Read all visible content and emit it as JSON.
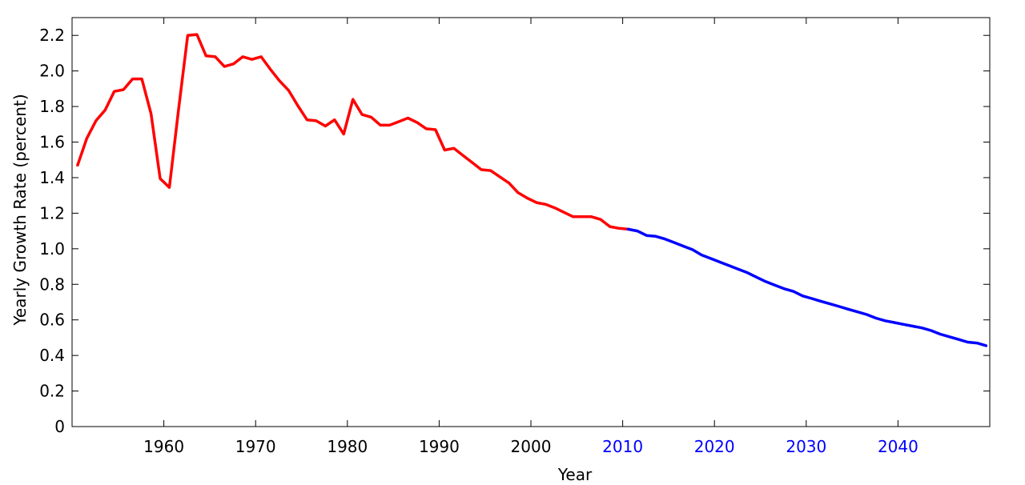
{
  "chart_data": {
    "type": "line",
    "xlabel": "Year",
    "ylabel": "Yearly Growth Rate (percent)",
    "xlim": [
      1950,
      2050
    ],
    "ylim": [
      0,
      2.3
    ],
    "grid": false,
    "x_ticks": [
      {
        "value": 1960,
        "label": "1960",
        "color": "#000000"
      },
      {
        "value": 1970,
        "label": "1970",
        "color": "#000000"
      },
      {
        "value": 1980,
        "label": "1980",
        "color": "#000000"
      },
      {
        "value": 1990,
        "label": "1990",
        "color": "#000000"
      },
      {
        "value": 2000,
        "label": "2000",
        "color": "#000000"
      },
      {
        "value": 2010,
        "label": "2010",
        "color": "#0000ff"
      },
      {
        "value": 2020,
        "label": "2020",
        "color": "#0000ff"
      },
      {
        "value": 2030,
        "label": "2030",
        "color": "#0000ff"
      },
      {
        "value": 2040,
        "label": "2040",
        "color": "#0000ff"
      }
    ],
    "y_ticks": [
      {
        "value": 0,
        "label": "0"
      },
      {
        "value": 0.2,
        "label": "0.2"
      },
      {
        "value": 0.4,
        "label": "0.4"
      },
      {
        "value": 0.6,
        "label": "0.6"
      },
      {
        "value": 0.8,
        "label": "0.8"
      },
      {
        "value": 1.0,
        "label": "1.0"
      },
      {
        "value": 1.2,
        "label": "1.2"
      },
      {
        "value": 1.4,
        "label": "1.4"
      },
      {
        "value": 1.6,
        "label": "1.6"
      },
      {
        "value": 1.8,
        "label": "1.8"
      },
      {
        "value": 2.0,
        "label": "2.0"
      },
      {
        "value": 2.2,
        "label": "2.2"
      }
    ],
    "series": [
      {
        "color": "#ff0000",
        "points": [
          [
            1950.6,
            1.47
          ],
          [
            1951.6,
            1.62
          ],
          [
            1952.6,
            1.72
          ],
          [
            1953.6,
            1.78
          ],
          [
            1954.6,
            1.885
          ],
          [
            1955.6,
            1.895
          ],
          [
            1956.6,
            1.955
          ],
          [
            1957.6,
            1.955
          ],
          [
            1958.6,
            1.76
          ],
          [
            1959.6,
            1.395
          ],
          [
            1960.6,
            1.345
          ],
          [
            1961.6,
            1.78
          ],
          [
            1962.6,
            2.2
          ],
          [
            1963.6,
            2.205
          ],
          [
            1964.6,
            2.085
          ],
          [
            1965.6,
            2.08
          ],
          [
            1966.6,
            2.025
          ],
          [
            1967.6,
            2.04
          ],
          [
            1968.6,
            2.08
          ],
          [
            1969.6,
            2.065
          ],
          [
            1970.6,
            2.08
          ],
          [
            1971.6,
            2.01
          ],
          [
            1972.6,
            1.945
          ],
          [
            1973.6,
            1.89
          ],
          [
            1974.6,
            1.805
          ],
          [
            1975.6,
            1.725
          ],
          [
            1976.6,
            1.72
          ],
          [
            1977.6,
            1.69
          ],
          [
            1978.6,
            1.725
          ],
          [
            1979.6,
            1.645
          ],
          [
            1980.6,
            1.84
          ],
          [
            1981.6,
            1.755
          ],
          [
            1982.6,
            1.74
          ],
          [
            1983.6,
            1.695
          ],
          [
            1984.6,
            1.695
          ],
          [
            1985.6,
            1.715
          ],
          [
            1986.6,
            1.735
          ],
          [
            1987.6,
            1.71
          ],
          [
            1988.6,
            1.675
          ],
          [
            1989.6,
            1.67
          ],
          [
            1990.6,
            1.555
          ],
          [
            1991.6,
            1.565
          ],
          [
            1992.6,
            1.525
          ],
          [
            1993.6,
            1.485
          ],
          [
            1994.6,
            1.445
          ],
          [
            1995.6,
            1.44
          ],
          [
            1996.6,
            1.405
          ],
          [
            1997.6,
            1.37
          ],
          [
            1998.6,
            1.315
          ],
          [
            1999.6,
            1.285
          ],
          [
            2000.6,
            1.26
          ],
          [
            2001.6,
            1.25
          ],
          [
            2002.6,
            1.23
          ],
          [
            2003.6,
            1.205
          ],
          [
            2004.6,
            1.18
          ],
          [
            2005.6,
            1.18
          ],
          [
            2006.6,
            1.18
          ],
          [
            2007.6,
            1.165
          ],
          [
            2008.6,
            1.125
          ],
          [
            2009.6,
            1.115
          ],
          [
            2010.6,
            1.11
          ]
        ]
      },
      {
        "color": "#0000ff",
        "points": [
          [
            2010.6,
            1.11
          ],
          [
            2011.6,
            1.1
          ],
          [
            2012.6,
            1.075
          ],
          [
            2013.6,
            1.07
          ],
          [
            2014.6,
            1.055
          ],
          [
            2015.6,
            1.035
          ],
          [
            2016.6,
            1.015
          ],
          [
            2017.6,
            0.995
          ],
          [
            2018.6,
            0.965
          ],
          [
            2019.6,
            0.945
          ],
          [
            2020.6,
            0.925
          ],
          [
            2021.6,
            0.905
          ],
          [
            2022.6,
            0.885
          ],
          [
            2023.6,
            0.865
          ],
          [
            2024.6,
            0.84
          ],
          [
            2025.6,
            0.815
          ],
          [
            2026.6,
            0.795
          ],
          [
            2027.6,
            0.775
          ],
          [
            2028.6,
            0.76
          ],
          [
            2029.6,
            0.735
          ],
          [
            2030.6,
            0.72
          ],
          [
            2031.6,
            0.705
          ],
          [
            2032.6,
            0.69
          ],
          [
            2033.6,
            0.675
          ],
          [
            2034.6,
            0.66
          ],
          [
            2035.6,
            0.645
          ],
          [
            2036.6,
            0.63
          ],
          [
            2037.6,
            0.61
          ],
          [
            2038.6,
            0.595
          ],
          [
            2039.6,
            0.585
          ],
          [
            2040.6,
            0.575
          ],
          [
            2041.6,
            0.565
          ],
          [
            2042.6,
            0.555
          ],
          [
            2043.6,
            0.54
          ],
          [
            2044.6,
            0.52
          ],
          [
            2045.6,
            0.505
          ],
          [
            2046.6,
            0.49
          ],
          [
            2047.6,
            0.475
          ],
          [
            2048.6,
            0.47
          ],
          [
            2049.6,
            0.455
          ]
        ]
      }
    ]
  }
}
